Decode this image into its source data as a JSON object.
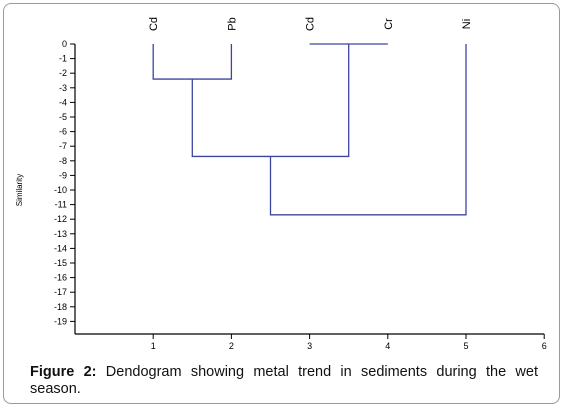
{
  "chart_data": {
    "type": "dendrogram",
    "ylabel": "Similarity",
    "xlim": [
      0,
      6
    ],
    "ylim": [
      -20,
      0
    ],
    "x_ticks": [
      1,
      2,
      3,
      4,
      5,
      6
    ],
    "y_ticks": [
      0,
      -1,
      -2,
      -3,
      -4,
      -5,
      -6,
      -7,
      -8,
      -9,
      -10,
      -11,
      -12,
      -13,
      -14,
      -15,
      -16,
      -17,
      -18,
      -19
    ],
    "leaves": [
      {
        "x": 1,
        "label": "Cd"
      },
      {
        "x": 2,
        "label": "Pb"
      },
      {
        "x": 3,
        "label": "Cd"
      },
      {
        "x": 4,
        "label": "Cr"
      },
      {
        "x": 5,
        "label": "Ni"
      }
    ],
    "merges": [
      {
        "left_x": 1,
        "right_x": 2,
        "height": -2.4
      },
      {
        "left_x": 3,
        "right_x": 4,
        "height": 0
      },
      {
        "left_x": 1.5,
        "right_x": 3.5,
        "height": -7.7
      },
      {
        "left_x": 2.5,
        "right_x": 5,
        "height": -11.7
      }
    ],
    "line_color": "#3c46a0"
  },
  "caption": {
    "figure_label": "Figure 2:",
    "text": " Dendogram showing metal trend in sediments during the wet season."
  }
}
